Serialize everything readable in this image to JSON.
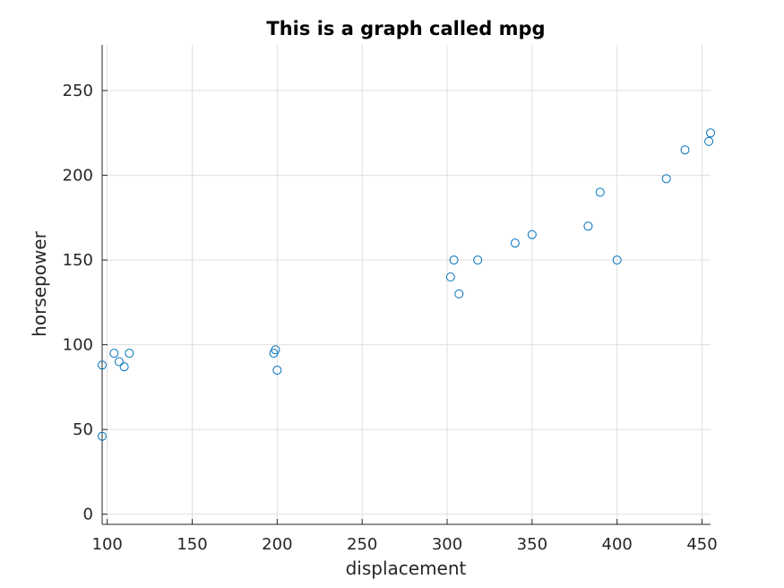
{
  "chart_data": {
    "type": "scatter",
    "title": "This is a graph called mpg",
    "xlabel": "displacement",
    "ylabel": "horsepower",
    "xlim": [
      97,
      455
    ],
    "ylim": [
      -6,
      277
    ],
    "xticks": [
      100,
      150,
      200,
      250,
      300,
      350,
      400,
      450
    ],
    "yticks": [
      0,
      50,
      100,
      150,
      200,
      250
    ],
    "grid": true,
    "marker": "circle",
    "color": "#0072bd",
    "points": [
      {
        "x": 97,
        "y": 88
      },
      {
        "x": 97,
        "y": 46
      },
      {
        "x": 104,
        "y": 95
      },
      {
        "x": 107,
        "y": 90
      },
      {
        "x": 110,
        "y": 87
      },
      {
        "x": 113,
        "y": 95
      },
      {
        "x": 198,
        "y": 95
      },
      {
        "x": 199,
        "y": 97
      },
      {
        "x": 200,
        "y": 85
      },
      {
        "x": 302,
        "y": 140
      },
      {
        "x": 304,
        "y": 150
      },
      {
        "x": 307,
        "y": 130
      },
      {
        "x": 318,
        "y": 150
      },
      {
        "x": 340,
        "y": 160
      },
      {
        "x": 350,
        "y": 165
      },
      {
        "x": 383,
        "y": 170
      },
      {
        "x": 390,
        "y": 190
      },
      {
        "x": 400,
        "y": 150
      },
      {
        "x": 429,
        "y": 198
      },
      {
        "x": 440,
        "y": 215
      },
      {
        "x": 454,
        "y": 220
      },
      {
        "x": 455,
        "y": 225
      }
    ]
  }
}
